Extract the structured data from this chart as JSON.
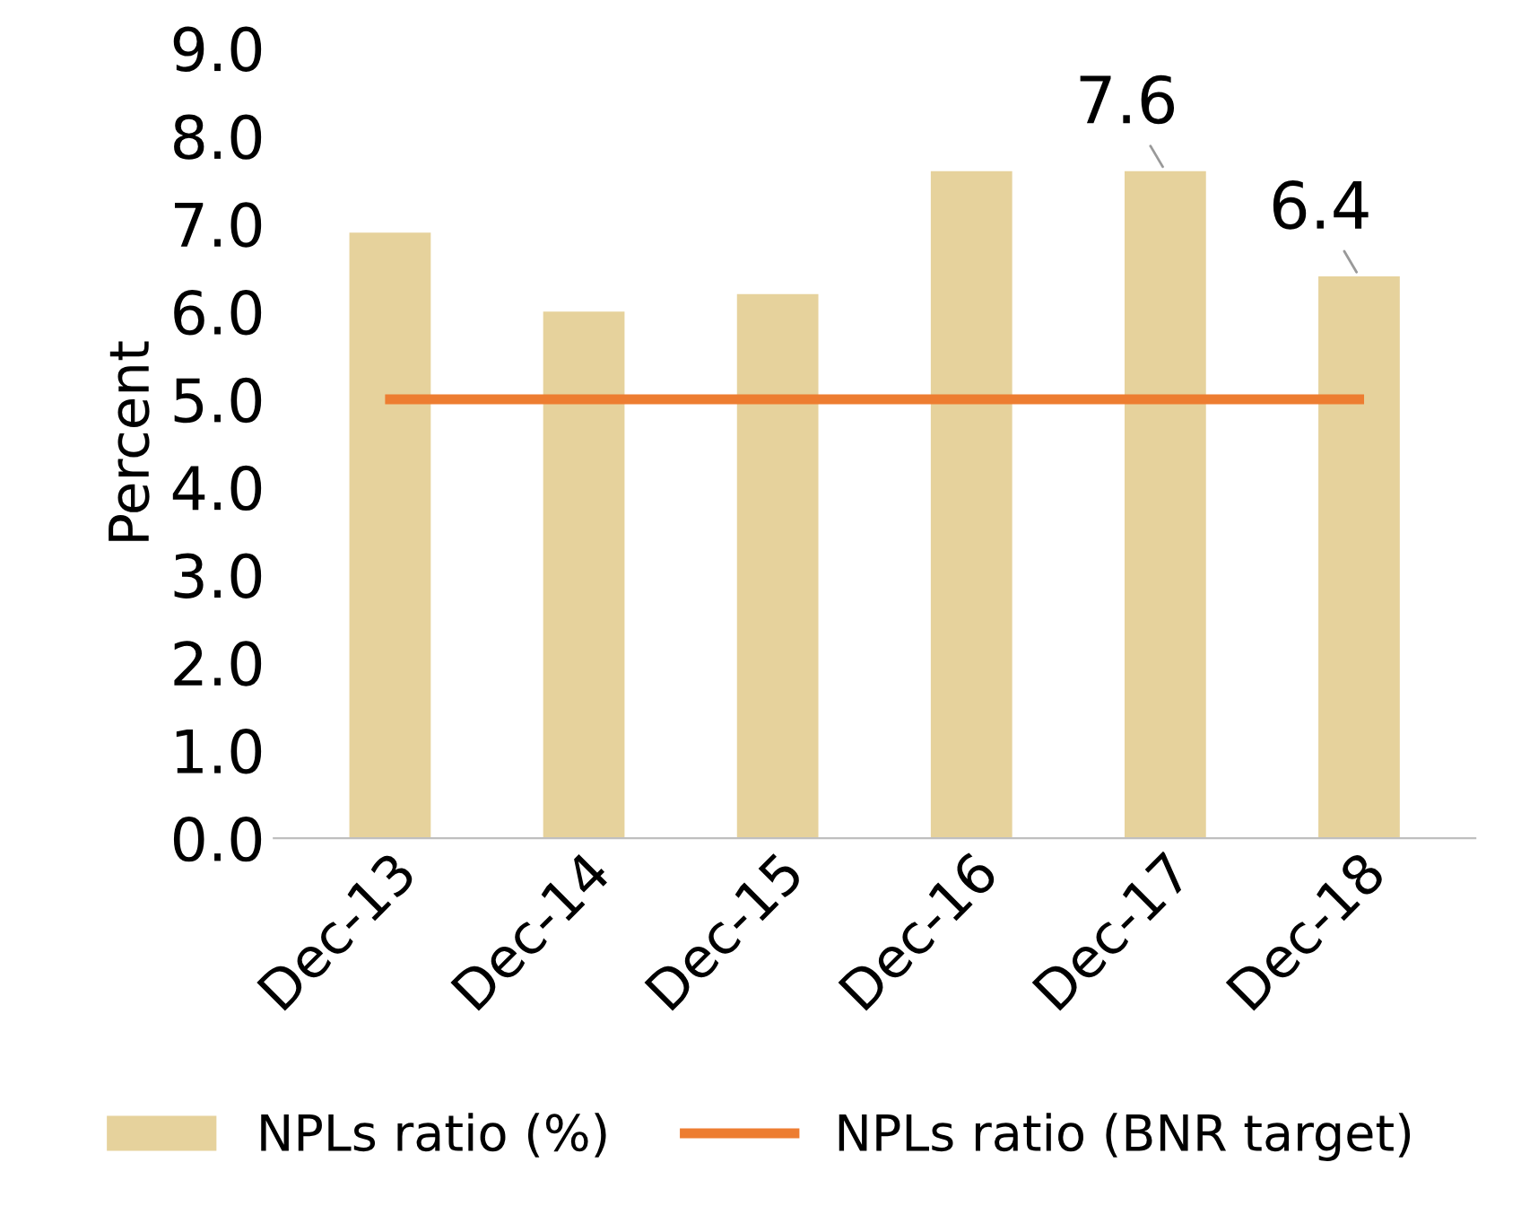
{
  "chart_data": {
    "type": "bar",
    "ylabel": "Percent",
    "categories": [
      "Dec-13",
      "Dec-14",
      "Dec-15",
      "Dec-16",
      "Dec-17",
      "Dec-18"
    ],
    "series": [
      {
        "name": "NPLs ratio (%)",
        "color": "#e6d29c",
        "values": [
          6.9,
          6.0,
          6.2,
          7.6,
          7.6,
          6.4
        ],
        "value_labels": [
          null,
          null,
          null,
          null,
          "7.6",
          "6.4"
        ]
      },
      {
        "name": "NPLs ratio (BNR target)",
        "type": "line",
        "color": "#ed7d31",
        "values": [
          5.0,
          5.0,
          5.0,
          5.0,
          5.0,
          5.0
        ]
      }
    ],
    "ylim": [
      0,
      9
    ],
    "yticks": [
      {
        "value": 0,
        "label": "0.0"
      },
      {
        "value": 1,
        "label": "1.0"
      },
      {
        "value": 2,
        "label": "2.0"
      },
      {
        "value": 3,
        "label": "3.0"
      },
      {
        "value": 4,
        "label": "4.0"
      },
      {
        "value": 5,
        "label": "5.0"
      },
      {
        "value": 6,
        "label": "6.0"
      },
      {
        "value": 7,
        "label": "7.0"
      },
      {
        "value": 8,
        "label": "8.0"
      },
      {
        "value": 9,
        "label": "9.0"
      }
    ],
    "grid": false,
    "legend": "bottom"
  }
}
